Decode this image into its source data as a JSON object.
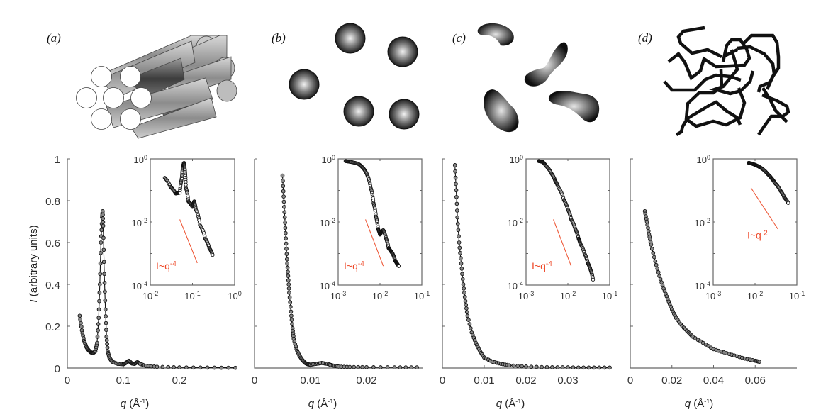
{
  "figure": {
    "panel_labels": [
      "(a)",
      "(b)",
      "(c)",
      "(d)"
    ],
    "ylabel_italic": "I",
    "ylabel_rest": " (arbitrary units)",
    "xlabel_italic": "q",
    "xlabel_rest": " (Å",
    "xlabel_sup": "-1",
    "xlabel_close": ")",
    "illustrations": [
      "hexagonal-packed-cylinders",
      "spheres",
      "irregular-blobs",
      "random-polymer-chains"
    ]
  },
  "chart_data": [
    {
      "panel": "a",
      "type": "scatter",
      "title": "",
      "xlabel": "q (Å^-1)",
      "ylabel": "I (arbitrary units)",
      "xlim": [
        0,
        0.3
      ],
      "ylim": [
        0,
        1
      ],
      "xticks": [
        0,
        0.1,
        0.2
      ],
      "xtick_labels": [
        "0",
        "0.1",
        "0.2"
      ],
      "yticks": [
        0,
        0.2,
        0.4,
        0.6,
        0.8,
        1
      ],
      "ytick_labels": [
        "0",
        "0.2",
        "0.4",
        "0.6",
        "0.8",
        "1"
      ],
      "x": [
        0.022,
        0.026,
        0.03,
        0.034,
        0.038,
        0.042,
        0.046,
        0.05,
        0.053,
        0.056,
        0.058,
        0.06,
        0.062,
        0.063,
        0.064,
        0.066,
        0.068,
        0.07,
        0.072,
        0.075,
        0.08,
        0.09,
        0.1,
        0.105,
        0.11,
        0.115,
        0.12,
        0.125,
        0.13,
        0.14,
        0.16,
        0.2,
        0.25,
        0.3
      ],
      "y": [
        0.25,
        0.18,
        0.13,
        0.1,
        0.085,
        0.075,
        0.072,
        0.08,
        0.12,
        0.24,
        0.4,
        0.6,
        0.72,
        0.75,
        0.68,
        0.45,
        0.28,
        0.15,
        0.08,
        0.05,
        0.03,
        0.02,
        0.018,
        0.025,
        0.035,
        0.022,
        0.02,
        0.028,
        0.02,
        0.01,
        0.006,
        0.003,
        0.002,
        0.001
      ],
      "inset": {
        "type": "scatter",
        "scale": "log-log",
        "xlim": [
          0.01,
          1
        ],
        "ylim": [
          0.0001,
          1
        ],
        "xtick_labels": [
          "10^-2",
          "10^-1",
          "10^0"
        ],
        "ytick_labels": [
          "10^-4",
          "10^-2",
          "10^0"
        ],
        "annotation": "I~q^-4",
        "annotation_base": "I~q",
        "annotation_exp": "-4",
        "slope_line": {
          "x": [
            0.05,
            0.13
          ],
          "y": [
            0.012,
            0.0005
          ]
        },
        "x": [
          0.022,
          0.03,
          0.04,
          0.05,
          0.056,
          0.06,
          0.063,
          0.066,
          0.07,
          0.08,
          0.1,
          0.11,
          0.12,
          0.15,
          0.2,
          0.25,
          0.3
        ],
        "y": [
          0.25,
          0.13,
          0.08,
          0.085,
          0.25,
          0.6,
          0.75,
          0.45,
          0.12,
          0.045,
          0.03,
          0.045,
          0.025,
          0.008,
          0.003,
          0.0015,
          0.0009
        ]
      }
    },
    {
      "panel": "b",
      "type": "scatter",
      "title": "",
      "xlabel": "q (Å^-1)",
      "ylabel": "",
      "xlim": [
        0,
        0.03
      ],
      "ylim": [
        0,
        1
      ],
      "xticks": [
        0,
        0.01,
        0.02
      ],
      "xtick_labels": [
        "0",
        "0.01",
        "0.02"
      ],
      "yticks": [
        0,
        0.2,
        0.4,
        0.6,
        0.8,
        1
      ],
      "x": [
        0.005,
        0.0052,
        0.0054,
        0.0056,
        0.0058,
        0.006,
        0.0062,
        0.0065,
        0.0068,
        0.007,
        0.0075,
        0.008,
        0.0085,
        0.009,
        0.0095,
        0.01,
        0.011,
        0.012,
        0.013,
        0.014,
        0.015,
        0.017,
        0.02,
        0.025,
        0.029
      ],
      "y": [
        0.92,
        0.82,
        0.72,
        0.62,
        0.52,
        0.44,
        0.36,
        0.27,
        0.19,
        0.14,
        0.09,
        0.06,
        0.04,
        0.025,
        0.018,
        0.016,
        0.02,
        0.024,
        0.02,
        0.012,
        0.007,
        0.005,
        0.004,
        0.003,
        0.003
      ],
      "inset": {
        "type": "scatter",
        "scale": "log-log",
        "xlim": [
          0.001,
          0.1
        ],
        "ylim": [
          0.0001,
          1
        ],
        "xtick_labels": [
          "10^-3",
          "10^-2",
          "10^-1"
        ],
        "ytick_labels": [
          "10^-4",
          "10^-2",
          "10^0"
        ],
        "annotation": "I~q^-4",
        "annotation_base": "I~q",
        "annotation_exp": "-4",
        "slope_line": {
          "x": [
            0.0045,
            0.012
          ],
          "y": [
            0.012,
            0.0004
          ]
        },
        "x": [
          0.0015,
          0.002,
          0.003,
          0.004,
          0.005,
          0.006,
          0.007,
          0.008,
          0.009,
          0.01,
          0.011,
          0.012,
          0.014,
          0.016,
          0.018,
          0.02,
          0.023,
          0.025,
          0.028
        ],
        "y": [
          0.85,
          0.8,
          0.7,
          0.5,
          0.3,
          0.12,
          0.04,
          0.015,
          0.006,
          0.004,
          0.005,
          0.0055,
          0.003,
          0.0015,
          0.0012,
          0.001,
          0.0006,
          0.0005,
          0.0004
        ]
      }
    },
    {
      "panel": "c",
      "type": "scatter",
      "title": "",
      "xlabel": "q (Å^-1)",
      "ylabel": "",
      "xlim": [
        0,
        0.04
      ],
      "ylim": [
        0,
        1
      ],
      "xticks": [
        0,
        0.01,
        0.02,
        0.03
      ],
      "xtick_labels": [
        "0",
        "0.01",
        "0.02",
        "0.03"
      ],
      "yticks": [
        0,
        0.2,
        0.4,
        0.6,
        0.8,
        1
      ],
      "x": [
        0.003,
        0.0033,
        0.0036,
        0.004,
        0.0045,
        0.005,
        0.0055,
        0.006,
        0.007,
        0.008,
        0.009,
        0.01,
        0.012,
        0.014,
        0.016,
        0.02,
        0.025,
        0.03,
        0.035,
        0.04
      ],
      "y": [
        0.97,
        0.85,
        0.72,
        0.6,
        0.5,
        0.4,
        0.32,
        0.25,
        0.17,
        0.12,
        0.08,
        0.05,
        0.03,
        0.02,
        0.013,
        0.007,
        0.004,
        0.003,
        0.002,
        0.002
      ],
      "inset": {
        "type": "scatter",
        "scale": "log-log",
        "xlim": [
          0.001,
          0.1
        ],
        "ylim": [
          0.0001,
          1
        ],
        "xtick_labels": [
          "10^-3",
          "10^-2",
          "10^-1"
        ],
        "ytick_labels": [
          "10^-4",
          "10^-2",
          "10^0"
        ],
        "annotation": "I~q^-4",
        "annotation_base": "I~q",
        "annotation_exp": "-4",
        "slope_line": {
          "x": [
            0.0045,
            0.012
          ],
          "y": [
            0.012,
            0.0004
          ]
        },
        "x": [
          0.002,
          0.0025,
          0.003,
          0.004,
          0.005,
          0.006,
          0.008,
          0.01,
          0.012,
          0.015,
          0.018,
          0.02,
          0.025,
          0.03,
          0.035,
          0.04
        ],
        "y": [
          0.85,
          0.8,
          0.6,
          0.35,
          0.2,
          0.12,
          0.05,
          0.025,
          0.012,
          0.006,
          0.003,
          0.002,
          0.001,
          0.0005,
          0.0003,
          0.00015
        ]
      }
    },
    {
      "panel": "d",
      "type": "scatter",
      "title": "",
      "xlabel": "q (Å^-1)",
      "ylabel": "",
      "xlim": [
        0,
        0.08
      ],
      "ylim": [
        0,
        1
      ],
      "xticks": [
        0,
        0.02,
        0.04,
        0.06
      ],
      "xtick_labels": [
        "0",
        "0.02",
        "0.04",
        "0.06"
      ],
      "yticks": [
        0,
        0.2,
        0.4,
        0.6,
        0.8,
        1
      ],
      "x": [
        0.007,
        0.008,
        0.009,
        0.01,
        0.012,
        0.014,
        0.016,
        0.018,
        0.02,
        0.022,
        0.025,
        0.028,
        0.03,
        0.035,
        0.04,
        0.045,
        0.05,
        0.055,
        0.06,
        0.062
      ],
      "y": [
        0.75,
        0.7,
        0.64,
        0.59,
        0.51,
        0.44,
        0.38,
        0.33,
        0.28,
        0.24,
        0.2,
        0.17,
        0.15,
        0.12,
        0.09,
        0.075,
        0.06,
        0.045,
        0.035,
        0.03
      ],
      "inset": {
        "type": "scatter",
        "scale": "log-log",
        "xlim": [
          0.001,
          0.1
        ],
        "ylim": [
          0.0001,
          1
        ],
        "xtick_labels": [
          "10^-3",
          "10^-2",
          "10^-1"
        ],
        "ytick_labels": [
          "10^-4",
          "10^-2",
          "10^0"
        ],
        "annotation": "I~q^-2",
        "annotation_base": "I~q",
        "annotation_exp": "-2",
        "slope_line": {
          "x": [
            0.008,
            0.035
          ],
          "y": [
            0.12,
            0.006
          ]
        },
        "x": [
          0.007,
          0.008,
          0.01,
          0.012,
          0.015,
          0.02,
          0.025,
          0.03,
          0.04,
          0.05,
          0.062
        ],
        "y": [
          0.75,
          0.72,
          0.65,
          0.58,
          0.48,
          0.33,
          0.24,
          0.17,
          0.1,
          0.06,
          0.04
        ]
      }
    }
  ]
}
